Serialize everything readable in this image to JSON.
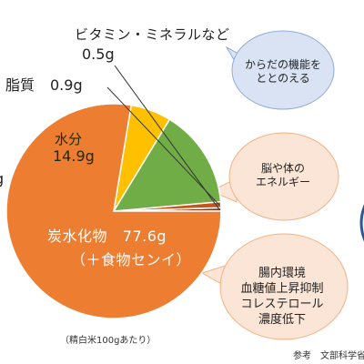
{
  "chart_data": {
    "type": "pie",
    "unit": "g",
    "slices": [
      {
        "key": "vitamin",
        "name": "ビタミン・ミネラルなど",
        "value": 0.5,
        "value_label": "0.5g",
        "color": "#8a3a1a"
      },
      {
        "key": "fat",
        "name": "脂質",
        "value": 0.9,
        "value_label": "0.9g",
        "color": "#c8541c"
      },
      {
        "key": "water",
        "name": "水分",
        "value": 14.9,
        "value_label": "14.9g",
        "color": "#70ad47"
      },
      {
        "key": "protein",
        "name": "",
        "value": 6.1,
        "value_label": "g",
        "color": "#ffc000"
      },
      {
        "key": "carb",
        "name": "炭水化物",
        "value": 77.6,
        "value_label": "77.6g",
        "sub_label": "（＋食物センイ）",
        "color": "#ed7d31"
      }
    ]
  },
  "footnote": "（精白米100gあたり）",
  "reference": "参考　文部科学省「日",
  "bubbles": {
    "vitamin": {
      "lines": [
        "からだの機能を",
        "ととのえる"
      ],
      "fill": "#dae3f3",
      "stroke": "#8faadc"
    },
    "fat": {
      "lines": [
        "脳や体の",
        "エネルギー"
      ],
      "fill": "#fbe5d6",
      "stroke": "#f4b183"
    },
    "fiber": {
      "lines": [
        "腸内環境",
        "血糖値上昇抑制",
        "コレステロール",
        "濃度低下"
      ],
      "fill": "#fbe5d6",
      "stroke": "#f4b183"
    }
  },
  "edge_circle_color": "#2f5597"
}
